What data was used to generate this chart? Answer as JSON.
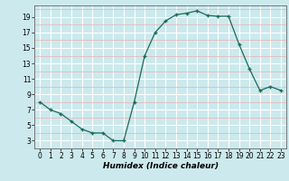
{
  "x": [
    0,
    1,
    2,
    3,
    4,
    5,
    6,
    7,
    8,
    9,
    10,
    11,
    12,
    13,
    14,
    15,
    16,
    17,
    18,
    19,
    20,
    21,
    22,
    23
  ],
  "y": [
    8,
    7,
    6.5,
    5.5,
    4.5,
    4,
    4,
    3,
    3,
    8,
    14,
    17,
    18.5,
    19.3,
    19.5,
    19.8,
    19.2,
    19.1,
    19.1,
    15.5,
    12.3,
    9.5,
    10,
    9.5
  ],
  "line_color": "#1a6b5a",
  "marker": "+",
  "marker_size": 3,
  "marker_lw": 1.0,
  "bg_color": "#cce9ed",
  "grid_major_color": "#ffffff",
  "grid_minor_color": "#e8b0b0",
  "xlabel": "Humidex (Indice chaleur)",
  "ylim": [
    2,
    20.5
  ],
  "xlim": [
    -0.5,
    23.5
  ],
  "yticks": [
    3,
    5,
    7,
    9,
    11,
    13,
    15,
    17,
    19
  ],
  "xticks": [
    0,
    1,
    2,
    3,
    4,
    5,
    6,
    7,
    8,
    9,
    10,
    11,
    12,
    13,
    14,
    15,
    16,
    17,
    18,
    19,
    20,
    21,
    22,
    23
  ],
  "line_width": 0.9,
  "xlabel_fontsize": 6.5,
  "tick_fontsize": 5.5
}
